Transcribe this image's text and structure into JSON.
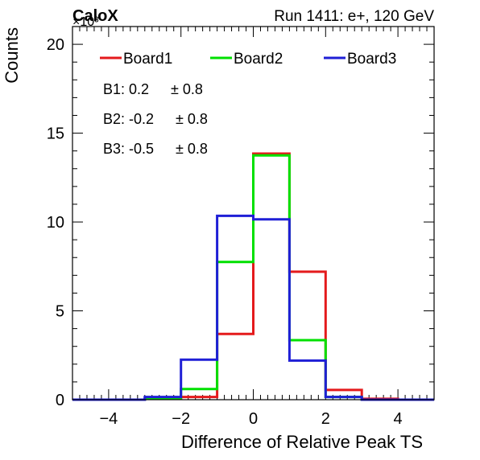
{
  "chart_data": {
    "type": "step-histogram",
    "title": "Run 1411: e+, 120 GeV",
    "experiment_label": "CaloX",
    "y_multiplier_label": "×10³",
    "xlabel": "Difference of Relative Peak TS",
    "ylabel": "Counts",
    "xlim": [
      -5,
      5
    ],
    "ylim": [
      0,
      21
    ],
    "x_ticks": [
      "−4",
      "−2",
      "0",
      "2",
      "4"
    ],
    "y_ticks": [
      "0",
      "5",
      "10",
      "15",
      "20"
    ],
    "bin_edges": [
      -5,
      -4,
      -3,
      -2,
      -1,
      0,
      1,
      2,
      3,
      4,
      5
    ],
    "legend_position": "top",
    "series": [
      {
        "name": "Board1",
        "color": "#e41a1c",
        "values": [
          0,
          0,
          0.05,
          0.15,
          3.7,
          13.85,
          7.2,
          0.55,
          0.05,
          0
        ]
      },
      {
        "name": "Board2",
        "color": "#00e000",
        "values": [
          0,
          0,
          0.05,
          0.6,
          7.75,
          13.75,
          3.35,
          0.15,
          0,
          0
        ]
      },
      {
        "name": "Board3",
        "color": "#1f1fd6",
        "values": [
          0,
          0,
          0.15,
          2.25,
          10.35,
          10.15,
          2.2,
          0.15,
          0,
          0
        ]
      }
    ],
    "annotations": [
      {
        "label": "B1:",
        "mean": "0.2",
        "sigma": "± 0.8"
      },
      {
        "label": "B2:",
        "mean": "-0.2",
        "sigma": "± 0.8"
      },
      {
        "label": "B3:",
        "mean": "-0.5",
        "sigma": "± 0.8"
      }
    ]
  }
}
